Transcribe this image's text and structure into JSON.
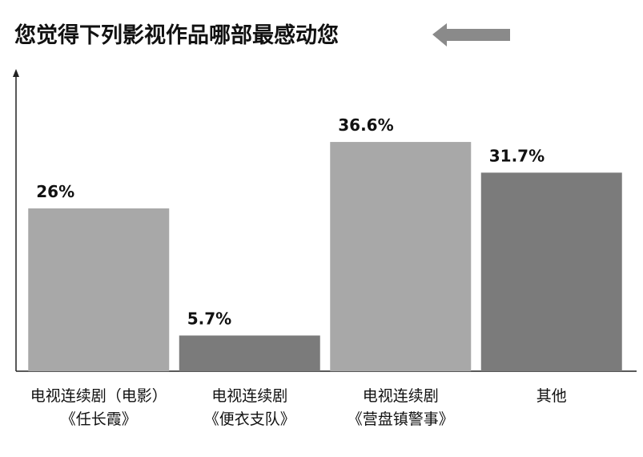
{
  "chart_data": {
    "type": "bar",
    "title": "您觉得下列影视作品哪部最感动您",
    "categories": [
      "电视连续剧（电影）\n《任长霞》",
      "电视连续剧\n《便衣支队》",
      "电视连续剧\n《营盘镇警事》",
      "其他"
    ],
    "values": [
      26,
      5.7,
      36.6,
      31.7
    ],
    "value_labels": [
      "26%",
      "5.7%",
      "36.6%",
      "31.7%"
    ],
    "colors": [
      "#a8a8a8",
      "#7b7b7b",
      "#a8a8a8",
      "#7b7b7b"
    ],
    "ylim": [
      0,
      48
    ]
  }
}
